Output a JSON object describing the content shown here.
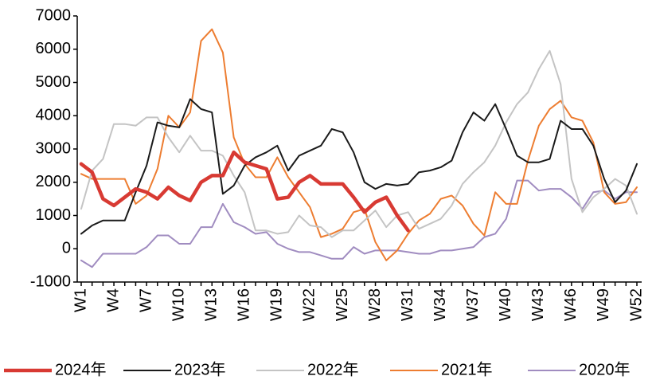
{
  "chart_data": {
    "type": "line",
    "categories": [
      "W1",
      null,
      null,
      "W4",
      null,
      null,
      "W7",
      null,
      null,
      "W10",
      null,
      null,
      "W13",
      null,
      null,
      "W16",
      null,
      null,
      "W19",
      null,
      null,
      "W22",
      null,
      null,
      "W25",
      null,
      null,
      "W28",
      null,
      null,
      "W31",
      null,
      null,
      "W34",
      null,
      null,
      "W37",
      null,
      null,
      "W40",
      null,
      null,
      "W43",
      null,
      null,
      "W46",
      null,
      null,
      "W49",
      null,
      null,
      "W52"
    ],
    "ylim": [
      -1000,
      7000
    ],
    "yticks": [
      -1000,
      0,
      1000,
      2000,
      3000,
      4000,
      5000,
      6000,
      7000
    ],
    "grid": false,
    "legend": "bottom",
    "series": [
      {
        "name": "2024年",
        "color": "#d83a33",
        "line_width": 4.5,
        "values": [
          2550,
          2300,
          1500,
          1300,
          1550,
          1800,
          1700,
          1500,
          1850,
          1600,
          1450,
          2000,
          2200,
          2200,
          2900,
          2600,
          2500,
          2400,
          1500,
          1550,
          2000,
          2200,
          1950,
          1950,
          1950,
          1550,
          1100,
          1400,
          1550,
          1000,
          550,
          null,
          null,
          null,
          null,
          null,
          null,
          null,
          null,
          null,
          null,
          null,
          null,
          null,
          null,
          null,
          null,
          null,
          null,
          null,
          null,
          null
        ]
      },
      {
        "name": "2023年",
        "color": "#1a1a1a",
        "line_width": 2,
        "values": [
          450,
          700,
          850,
          850,
          850,
          1700,
          2500,
          3800,
          3700,
          3650,
          4500,
          4200,
          4100,
          1650,
          1900,
          2500,
          2750,
          2900,
          3100,
          2350,
          2800,
          2950,
          3100,
          3600,
          3500,
          2900,
          2000,
          1800,
          1950,
          1900,
          1950,
          2300,
          2350,
          2450,
          2650,
          3500,
          4100,
          3850,
          4350,
          3600,
          2800,
          2600,
          2600,
          2700,
          3850,
          3600,
          3600,
          3100,
          2100,
          1400,
          1750,
          2550
        ]
      },
      {
        "name": "2022年",
        "color": "#c4c4c4",
        "line_width": 2,
        "values": [
          1200,
          2350,
          2700,
          3750,
          3750,
          3700,
          3950,
          3950,
          3350,
          2900,
          3400,
          2950,
          2950,
          2800,
          2200,
          1700,
          550,
          550,
          450,
          500,
          1000,
          700,
          650,
          350,
          550,
          550,
          850,
          1150,
          650,
          1000,
          1100,
          600,
          750,
          900,
          1300,
          1950,
          2300,
          2600,
          3100,
          3800,
          4350,
          4700,
          5400,
          5950,
          4950,
          2100,
          1100,
          1550,
          1800,
          2100,
          1900,
          1050
        ]
      },
      {
        "name": "2021年",
        "color": "#ed7d31",
        "line_width": 2,
        "values": [
          2250,
          2100,
          2100,
          2100,
          2100,
          1350,
          1600,
          2400,
          4000,
          3650,
          4100,
          6250,
          6600,
          5900,
          3350,
          2550,
          2150,
          2150,
          2750,
          2150,
          1700,
          1250,
          350,
          450,
          600,
          1100,
          1200,
          200,
          -350,
          -50,
          450,
          850,
          1050,
          1500,
          1600,
          1300,
          750,
          400,
          1700,
          1350,
          1350,
          2650,
          3700,
          4200,
          4450,
          3950,
          3850,
          3200,
          1700,
          1350,
          1400,
          1850
        ]
      },
      {
        "name": "2020年",
        "color": "#a08cc0",
        "line_width": 2,
        "values": [
          -350,
          -550,
          -150,
          -150,
          -150,
          -150,
          50,
          400,
          400,
          150,
          150,
          650,
          650,
          1350,
          800,
          650,
          450,
          500,
          150,
          0,
          -100,
          -100,
          -200,
          -300,
          -300,
          50,
          -150,
          -50,
          -50,
          -50,
          -100,
          -150,
          -150,
          -50,
          -50,
          0,
          50,
          350,
          450,
          900,
          2050,
          2050,
          1750,
          1800,
          1800,
          1550,
          1200,
          1700,
          1750,
          1500,
          1700,
          1700
        ]
      }
    ]
  }
}
